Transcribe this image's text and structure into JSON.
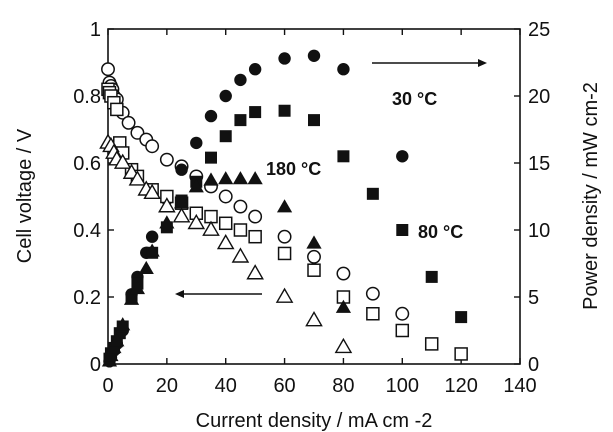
{
  "chart_data": {
    "type": "scatter",
    "xlabel": "Current density / mA cm -2",
    "ylabel_left": "Cell voltage / V",
    "ylabel_right": "Power density / mW cm-2",
    "xlim": [
      0,
      140
    ],
    "ylim_left": [
      0,
      1
    ],
    "ylim_right": [
      0,
      25
    ],
    "x_ticks": [
      "0",
      "20",
      "40",
      "60",
      "80",
      "100",
      "120",
      "140"
    ],
    "y_ticks_left": [
      "0",
      "0.2",
      "0.4",
      "0.6",
      "0.8",
      "1"
    ],
    "y_ticks_right": [
      "0",
      "5",
      "10",
      "15",
      "20",
      "25"
    ],
    "grid": false,
    "annotations": [
      "30 °C",
      "80 °C",
      "180 °C"
    ],
    "series": [
      {
        "label": "30 °C",
        "quantity": "cell voltage",
        "axis": "left",
        "marker": "open-circle",
        "x": [
          0,
          0.5,
          1,
          1.5,
          2,
          3,
          5,
          7,
          10,
          13,
          15,
          20,
          25,
          30,
          35,
          40,
          45,
          50,
          60,
          70,
          80,
          90,
          100
        ],
        "y": [
          0.88,
          0.84,
          0.83,
          0.82,
          0.8,
          0.79,
          0.75,
          0.72,
          0.69,
          0.67,
          0.65,
          0.61,
          0.59,
          0.56,
          0.53,
          0.5,
          0.47,
          0.44,
          0.38,
          0.32,
          0.27,
          0.21,
          0.15
        ]
      },
      {
        "label": "30 °C",
        "quantity": "power density",
        "axis": "right",
        "marker": "filled-circle",
        "x": [
          0.5,
          1,
          2,
          3,
          5,
          8,
          10,
          13,
          15,
          20,
          25,
          30,
          35,
          40,
          45,
          50,
          60,
          70,
          80,
          100
        ],
        "y": [
          0.2,
          0.5,
          1,
          1.5,
          2.5,
          5.2,
          6.5,
          8.3,
          9.5,
          12.3,
          14.5,
          16.5,
          18.5,
          20,
          21.2,
          22,
          22.8,
          23,
          22,
          15.5
        ]
      },
      {
        "label": "80 °C",
        "quantity": "cell voltage",
        "axis": "left",
        "marker": "open-square",
        "x": [
          0,
          0.5,
          1,
          2,
          3,
          4,
          5,
          8,
          10,
          15,
          20,
          25,
          30,
          35,
          40,
          45,
          50,
          60,
          70,
          80,
          90,
          100,
          110,
          120
        ],
        "y": [
          0.82,
          0.81,
          0.8,
          0.78,
          0.76,
          0.66,
          0.63,
          0.58,
          0.56,
          0.52,
          0.5,
          0.48,
          0.45,
          0.44,
          0.42,
          0.4,
          0.38,
          0.33,
          0.28,
          0.2,
          0.15,
          0.1,
          0.06,
          0.03
        ]
      },
      {
        "label": "80 °C",
        "quantity": "power density",
        "axis": "right",
        "marker": "filled-square",
        "x": [
          0.5,
          1,
          2,
          3,
          4,
          5,
          8,
          10,
          15,
          20,
          25,
          30,
          35,
          40,
          45,
          50,
          60,
          70,
          80,
          90,
          100,
          110,
          120
        ],
        "y": [
          0.4,
          0.8,
          1.2,
          1.7,
          2.3,
          2.8,
          4.9,
          6,
          8.3,
          10.2,
          12.2,
          13.6,
          15.4,
          17,
          18.2,
          18.8,
          18.9,
          18.2,
          15.5,
          12.7,
          10,
          6.5,
          3.5
        ]
      },
      {
        "label": "180 °C",
        "quantity": "cell voltage",
        "axis": "left",
        "marker": "open-triangle",
        "x": [
          0,
          1,
          2,
          3,
          5,
          8,
          10,
          13,
          15,
          20,
          25,
          30,
          35,
          40,
          45,
          50,
          60,
          70,
          80
        ],
        "y": [
          0.66,
          0.65,
          0.63,
          0.61,
          0.6,
          0.57,
          0.55,
          0.52,
          0.51,
          0.47,
          0.44,
          0.42,
          0.4,
          0.36,
          0.32,
          0.27,
          0.2,
          0.13,
          0.05
        ]
      },
      {
        "label": "180 °C",
        "quantity": "power density",
        "axis": "right",
        "marker": "filled-triangle",
        "x": [
          0.5,
          1,
          2,
          3,
          5,
          8,
          10,
          13,
          15,
          20,
          25,
          30,
          35,
          40,
          45,
          50,
          60,
          70,
          80
        ],
        "y": [
          0.2,
          0.6,
          1.2,
          1.7,
          2.9,
          4.8,
          5.6,
          7.1,
          8.4,
          10.5,
          12,
          13.2,
          13.7,
          13.8,
          13.8,
          13.8,
          11.7,
          9,
          4.2
        ]
      }
    ]
  }
}
